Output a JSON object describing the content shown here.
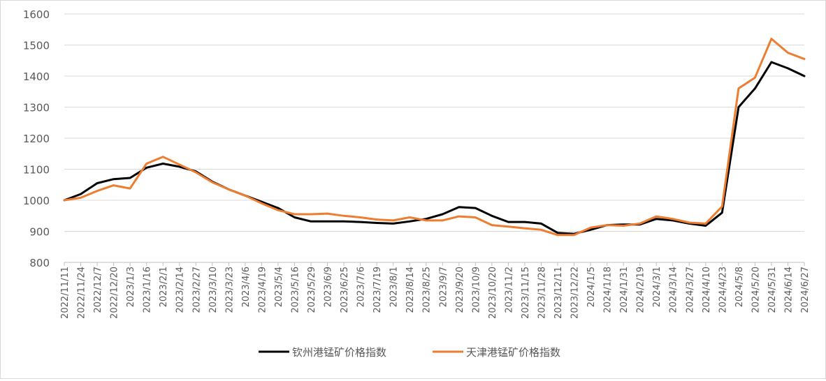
{
  "chart_data": {
    "type": "line",
    "title": "",
    "xlabel": "",
    "ylabel": "",
    "ylim": [
      800,
      1600
    ],
    "yticks": [
      800,
      900,
      1000,
      1100,
      1200,
      1300,
      1400,
      1500,
      1600
    ],
    "grid": "horizontal",
    "legend_position": "bottom",
    "x_tick_labels": [
      "2022/11/11",
      "2022/11/24",
      "2022/12/7",
      "2022/12/20",
      "2023/1/3",
      "2023/1/16",
      "2023/2/1",
      "2023/2/14",
      "2023/2/27",
      "2023/3/10",
      "2023/3/23",
      "2023/4/6",
      "2023/4/19",
      "2023/5/4",
      "2023/5/16",
      "2023/5/29",
      "2023/6/9",
      "2023/6/25",
      "2023/7/6",
      "2023/7/19",
      "2023/8/1",
      "2023/8/14",
      "2023/8/25",
      "2023/9/7",
      "2023/9/20",
      "2023/10/9",
      "2023/10/20",
      "2023/11/2",
      "2023/11/15",
      "2023/11/28",
      "2023/12/11",
      "2023/12/22",
      "2024/1/5",
      "2024/1/18",
      "2024/1/31",
      "2024/2/19",
      "2024/3/1",
      "2024/3/14",
      "2024/3/27",
      "2024/4/10",
      "2024/4/23",
      "2024/5/8",
      "2024/5/20",
      "2024/5/31",
      "2024/6/14",
      "2024/6/27"
    ],
    "x": [
      "2022/11/11",
      "2022/11/24",
      "2022/12/7",
      "2022/12/20",
      "2023/1/3",
      "2023/1/16",
      "2023/2/1",
      "2023/2/14",
      "2023/2/27",
      "2023/3/10",
      "2023/3/23",
      "2023/4/6",
      "2023/4/19",
      "2023/5/4",
      "2023/5/16",
      "2023/5/29",
      "2023/6/9",
      "2023/6/25",
      "2023/7/6",
      "2023/7/19",
      "2023/8/1",
      "2023/8/14",
      "2023/8/25",
      "2023/9/7",
      "2023/9/20",
      "2023/10/9",
      "2023/10/20",
      "2023/11/2",
      "2023/11/15",
      "2023/11/28",
      "2023/12/11",
      "2023/12/22",
      "2024/1/5",
      "2024/1/18",
      "2024/1/31",
      "2024/2/19",
      "2024/3/1",
      "2024/3/14",
      "2024/3/27",
      "2024/4/10",
      "2024/4/23",
      "2024/5/8",
      "2024/5/20",
      "2024/5/31",
      "2024/6/14",
      "2024/6/27"
    ],
    "series": [
      {
        "name": "钦州港锰矿价格指数",
        "color": "#000000",
        "values": [
          1000,
          1020,
          1055,
          1068,
          1072,
          1105,
          1118,
          1108,
          1093,
          1060,
          1035,
          1015,
          995,
          975,
          945,
          932,
          932,
          932,
          930,
          927,
          925,
          932,
          940,
          955,
          978,
          975,
          950,
          930,
          930,
          925,
          895,
          892,
          905,
          920,
          922,
          922,
          940,
          935,
          925,
          918,
          960,
          1300,
          1360,
          1445,
          1425,
          1400
        ]
      },
      {
        "name": "天津港锰矿价格指数",
        "color": "#ed7d31",
        "values": [
          1000,
          1008,
          1030,
          1048,
          1038,
          1118,
          1140,
          1115,
          1090,
          1058,
          1035,
          1015,
          990,
          968,
          955,
          955,
          957,
          950,
          945,
          938,
          935,
          945,
          935,
          935,
          948,
          945,
          920,
          915,
          910,
          905,
          888,
          888,
          912,
          920,
          918,
          925,
          948,
          940,
          928,
          925,
          980,
          1360,
          1395,
          1520,
          1475,
          1455
        ]
      }
    ]
  }
}
